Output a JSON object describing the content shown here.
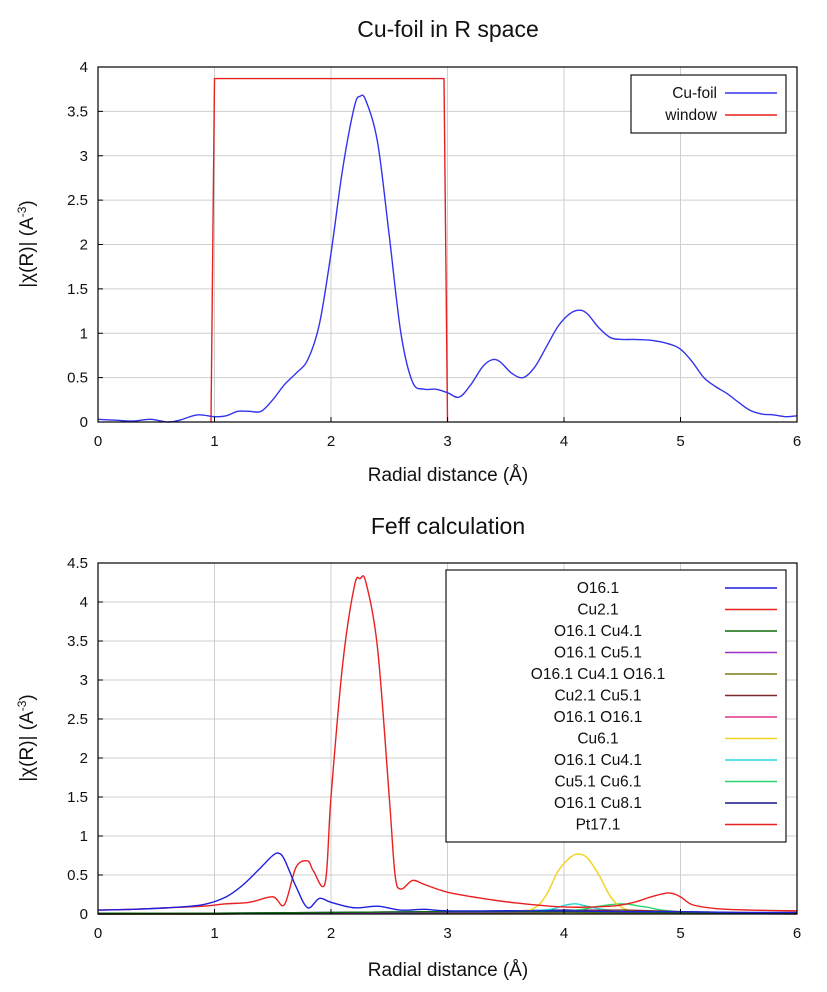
{
  "chart_data": [
    {
      "type": "line",
      "title": "Cu-foil in R space",
      "xlabel": "Radial distance    (Å)",
      "ylabel": "|χ(R)|    (A",
      "ylabel_sup": "-3",
      "ylabel_tail": ")",
      "xlim": [
        0,
        6
      ],
      "ylim": [
        0,
        4
      ],
      "xticks": [
        "0",
        "1",
        "2",
        "3",
        "4",
        "5",
        "6"
      ],
      "yticks": [
        "0",
        "0.5",
        "1",
        "1.5",
        "2",
        "2.5",
        "3",
        "3.5",
        "4"
      ],
      "grid": true,
      "legend_position": "top-right",
      "series": [
        {
          "name": "Cu-foil",
          "color": "#3333ee",
          "x": [
            0,
            0.15,
            0.3,
            0.45,
            0.6,
            0.7,
            0.85,
            1.0,
            1.1,
            1.2,
            1.3,
            1.4,
            1.5,
            1.6,
            1.7,
            1.8,
            1.9,
            2.0,
            2.1,
            2.2,
            2.25,
            2.3,
            2.4,
            2.5,
            2.6,
            2.7,
            2.8,
            2.9,
            3.0,
            3.1,
            3.2,
            3.3,
            3.38,
            3.45,
            3.55,
            3.65,
            3.75,
            3.85,
            3.95,
            4.05,
            4.13,
            4.2,
            4.3,
            4.4,
            4.5,
            4.6,
            4.75,
            4.9,
            5.0,
            5.1,
            5.2,
            5.3,
            5.4,
            5.5,
            5.6,
            5.7,
            5.8,
            5.9,
            6.0
          ],
          "y": [
            0.03,
            0.02,
            0.01,
            0.03,
            0.0,
            0.02,
            0.08,
            0.06,
            0.07,
            0.12,
            0.12,
            0.12,
            0.25,
            0.42,
            0.55,
            0.7,
            1.1,
            1.9,
            2.85,
            3.55,
            3.67,
            3.62,
            3.15,
            2.1,
            1.0,
            0.45,
            0.37,
            0.37,
            0.33,
            0.28,
            0.42,
            0.62,
            0.7,
            0.68,
            0.55,
            0.5,
            0.62,
            0.85,
            1.08,
            1.22,
            1.26,
            1.22,
            1.06,
            0.95,
            0.93,
            0.93,
            0.92,
            0.88,
            0.82,
            0.68,
            0.5,
            0.4,
            0.32,
            0.22,
            0.13,
            0.09,
            0.08,
            0.06,
            0.07
          ]
        },
        {
          "name": "window",
          "color": "#e82020",
          "x": [
            0.97,
            0.97,
            1.0,
            2.97,
            3.0,
            3.0
          ],
          "y": [
            0,
            0.02,
            3.87,
            3.87,
            0.02,
            0
          ]
        }
      ]
    },
    {
      "type": "line",
      "title": "Feff calculation",
      "xlabel": "Radial distance    (Å)",
      "ylabel": "|χ(R)|    (A",
      "ylabel_sup": "-3",
      "ylabel_tail": ")",
      "xlim": [
        0,
        6
      ],
      "ylim": [
        0,
        4.5
      ],
      "xticks": [
        "0",
        "1",
        "2",
        "3",
        "4",
        "5",
        "6"
      ],
      "yticks": [
        "0",
        "0.5",
        "1",
        "1.5",
        "2",
        "2.5",
        "3",
        "3.5",
        "4",
        "4.5"
      ],
      "grid": true,
      "legend_position": "top-right",
      "series": [
        {
          "name": "O16.1",
          "color": "#1f1fdd",
          "x": [
            0,
            0.3,
            0.6,
            0.9,
            1.1,
            1.25,
            1.4,
            1.5,
            1.55,
            1.6,
            1.7,
            1.8,
            1.9,
            2.0,
            2.2,
            2.4,
            2.6,
            2.8,
            3.0,
            3.5,
            4.0,
            4.5,
            5.0,
            5.5,
            6.0
          ],
          "y": [
            0.05,
            0.06,
            0.08,
            0.12,
            0.22,
            0.38,
            0.6,
            0.75,
            0.78,
            0.7,
            0.35,
            0.08,
            0.2,
            0.15,
            0.08,
            0.1,
            0.05,
            0.06,
            0.04,
            0.04,
            0.04,
            0.03,
            0.03,
            0.02,
            0.02
          ]
        },
        {
          "name": "Cu2.1",
          "color": "#e82020",
          "x": [
            0,
            0.3,
            0.6,
            0.9,
            1.1,
            1.3,
            1.5,
            1.6,
            1.7,
            1.8,
            1.85,
            1.95,
            2.0,
            2.1,
            2.2,
            2.25,
            2.3,
            2.4,
            2.5,
            2.55,
            2.6,
            2.7,
            2.8,
            3.0,
            3.3,
            3.6,
            4.0,
            4.4,
            4.6,
            4.75,
            4.9,
            5.0,
            5.1,
            5.3,
            5.6,
            6.0
          ],
          "y": [
            0.05,
            0.06,
            0.08,
            0.1,
            0.13,
            0.15,
            0.22,
            0.12,
            0.6,
            0.68,
            0.55,
            0.4,
            1.5,
            3.2,
            4.2,
            4.3,
            4.25,
            3.4,
            1.5,
            0.5,
            0.32,
            0.43,
            0.38,
            0.28,
            0.2,
            0.14,
            0.09,
            0.1,
            0.15,
            0.22,
            0.27,
            0.22,
            0.12,
            0.07,
            0.05,
            0.04
          ]
        },
        {
          "name": "O16.1  Cu4.1",
          "color": "#0b6b0b",
          "x": [
            0,
            1.0,
            2.0,
            3.0,
            4.0,
            5.0,
            6.0
          ],
          "y": [
            0.01,
            0.01,
            0.02,
            0.03,
            0.03,
            0.02,
            0.01
          ]
        },
        {
          "name": "O16.1  Cu5.1",
          "color": "#9b30c8",
          "x": [
            0,
            1.0,
            2.0,
            3.0,
            4.0,
            5.0,
            6.0
          ],
          "y": [
            0.0,
            0.01,
            0.01,
            0.02,
            0.03,
            0.02,
            0.01
          ]
        },
        {
          "name": "O16.1  Cu4.1  O16.1",
          "color": "#7a7a1a",
          "x": [
            0,
            1.0,
            2.0,
            3.0,
            4.0,
            5.0,
            6.0
          ],
          "y": [
            0.0,
            0.0,
            0.01,
            0.01,
            0.02,
            0.01,
            0.01
          ]
        },
        {
          "name": "Cu2.1  Cu5.1",
          "color": "#7a2a2a",
          "x": [
            0,
            1.0,
            2.0,
            3.0,
            4.0,
            4.5,
            5.0,
            6.0
          ],
          "y": [
            0.0,
            0.01,
            0.01,
            0.02,
            0.04,
            0.05,
            0.03,
            0.01
          ]
        },
        {
          "name": "O16.1        O16.1",
          "color": "#e0338a",
          "x": [
            0,
            1.0,
            2.0,
            3.0,
            4.0,
            5.0,
            6.0
          ],
          "y": [
            0.0,
            0.0,
            0.01,
            0.01,
            0.02,
            0.01,
            0.0
          ]
        },
        {
          "name": "Cu6.1",
          "color": "#f2d21b",
          "x": [
            0,
            3.0,
            3.6,
            3.75,
            3.85,
            3.95,
            4.05,
            4.12,
            4.2,
            4.3,
            4.4,
            4.5,
            4.65,
            5.0,
            6.0
          ],
          "y": [
            0.0,
            0.02,
            0.04,
            0.08,
            0.25,
            0.55,
            0.72,
            0.77,
            0.72,
            0.5,
            0.22,
            0.08,
            0.03,
            0.02,
            0.01
          ]
        },
        {
          "name": "O16.1        Cu4.1",
          "color": "#27d6d6",
          "x": [
            0,
            3.0,
            3.8,
            4.0,
            4.1,
            4.2,
            4.4,
            5.0,
            6.0
          ],
          "y": [
            0.0,
            0.02,
            0.05,
            0.11,
            0.13,
            0.1,
            0.05,
            0.02,
            0.01
          ]
        },
        {
          "name": "Cu5.1  Cu6.1",
          "color": "#2ad66b",
          "x": [
            0,
            3.0,
            4.0,
            4.3,
            4.5,
            4.7,
            5.0,
            6.0
          ],
          "y": [
            0.0,
            0.02,
            0.04,
            0.1,
            0.13,
            0.09,
            0.03,
            0.01
          ]
        },
        {
          "name": "O16.1  Cu8.1",
          "color": "#16168a",
          "x": [
            0,
            1.0,
            2.0,
            3.0,
            4.0,
            4.5,
            5.0,
            6.0
          ],
          "y": [
            0.0,
            0.01,
            0.02,
            0.03,
            0.05,
            0.04,
            0.02,
            0.01
          ]
        },
        {
          "name": "Pt17.1",
          "color": "#e82020",
          "x": [
            0,
            1.0,
            2.0,
            3.0,
            4.0,
            5.0,
            6.0
          ],
          "y": [
            0.0,
            0.0,
            0.01,
            0.01,
            0.02,
            0.02,
            0.01
          ]
        }
      ]
    }
  ]
}
